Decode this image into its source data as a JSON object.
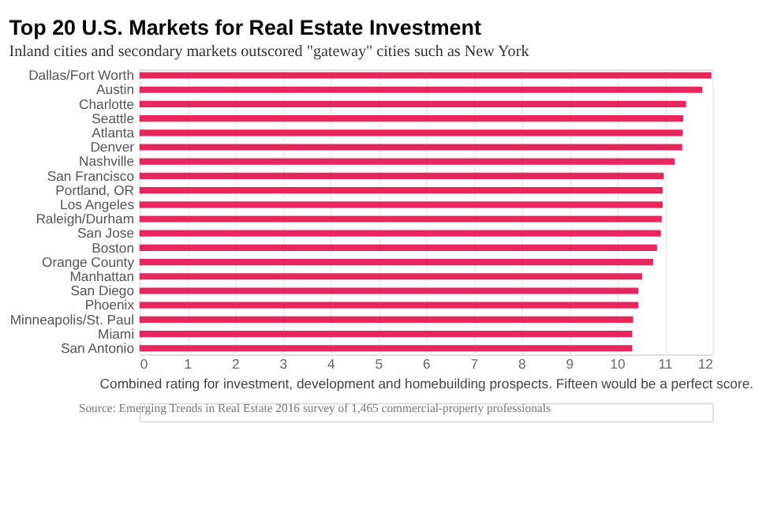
{
  "chart_data": {
    "type": "bar",
    "orientation": "horizontal",
    "title": "Top 20 U.S. Markets for Real Estate Investment",
    "subtitle": "Inland cities and secondary markets outscored \"gateway\" cities such as New York",
    "xlabel": "Combined rating for investment, development and homebuilding prospects. Fifteen would be a perfect score.",
    "categories": [
      "Dallas/Fort Worth",
      "Austin",
      "Charlotte",
      "Seattle",
      "Atlanta",
      "Denver",
      "Nashville",
      "San Francisco",
      "Portland, OR",
      "Los Angeles",
      "Raleigh/Durham",
      "San Jose",
      "Boston",
      "Orange County",
      "Manhattan",
      "San Diego",
      "Phoenix",
      "Minneapolis/St. Paul",
      "Miami",
      "San Antonio"
    ],
    "values": [
      11.98,
      11.79,
      11.45,
      11.39,
      11.38,
      11.37,
      11.21,
      10.98,
      10.96,
      10.96,
      10.94,
      10.92,
      10.84,
      10.76,
      10.53,
      10.45,
      10.45,
      10.34,
      10.32,
      10.32
    ],
    "color": "#e8265e",
    "xlim": [
      0,
      12
    ],
    "xticks": [
      0,
      1,
      2,
      3,
      4,
      5,
      6,
      7,
      8,
      9,
      10,
      11,
      12
    ],
    "grid": "x",
    "annotations": [
      "Source: Emerging Trends in Real Estate 2016 survey of 1,465 commercial-property professionals"
    ]
  }
}
